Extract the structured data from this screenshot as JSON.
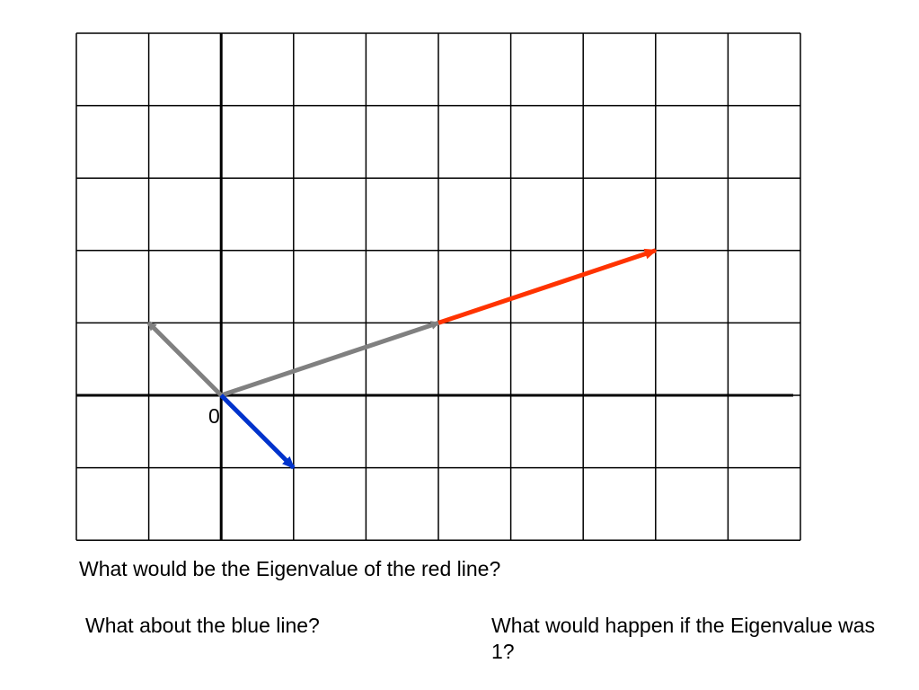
{
  "origin_label": "0",
  "questions": {
    "red_line": "What would be the Eigenvalue of the red line?",
    "blue_line": "What about the blue line?",
    "eigenvalue_one": "What would happen if the Eigenvalue was 1?"
  },
  "grid": {
    "columns": 10,
    "rows": 7,
    "origin_column": 2,
    "origin_row_from_top": 5
  },
  "vectors": [
    {
      "name": "gray-vector-upper-left",
      "color": "#808080",
      "from": [
        0,
        0
      ],
      "to": [
        -1,
        1
      ]
    },
    {
      "name": "gray-vector-right",
      "color": "#808080",
      "from": [
        0,
        0
      ],
      "to": [
        3,
        1
      ]
    },
    {
      "name": "red-vector",
      "color": "#ff3300",
      "from": [
        3,
        1
      ],
      "to": [
        6,
        2
      ]
    },
    {
      "name": "blue-vector",
      "color": "#0033cc",
      "from": [
        0,
        0
      ],
      "to": [
        1,
        -1
      ]
    }
  ]
}
